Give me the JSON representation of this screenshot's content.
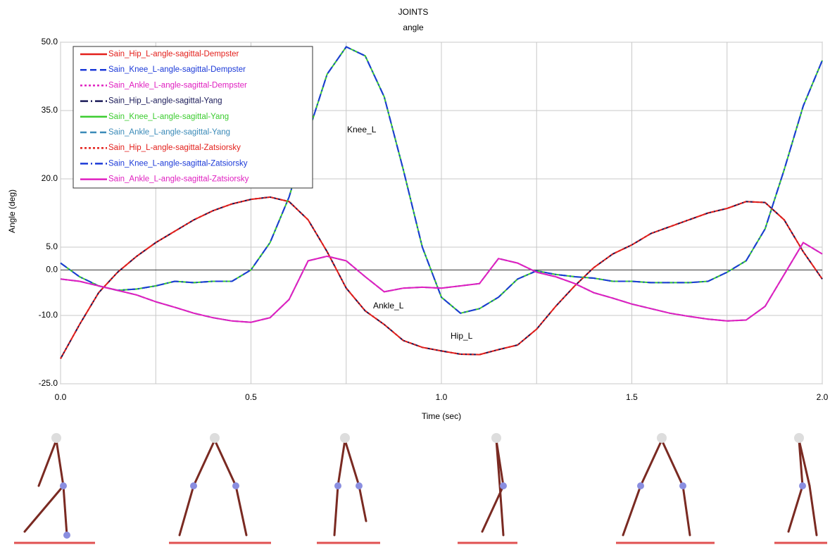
{
  "chart_data": {
    "type": "line",
    "title": "JOINTS",
    "subtitle": "angle",
    "x_label": "Time (sec)",
    "y_label": "Angle (deg)",
    "xlim": [
      0,
      2
    ],
    "ylim": [
      -25,
      50
    ],
    "xticks": [
      {
        "value": 0,
        "label": "0.0"
      },
      {
        "value": 0.5,
        "label": "0.5"
      },
      {
        "value": 1,
        "label": "1.0"
      },
      {
        "value": 1.5,
        "label": "1.5"
      },
      {
        "value": 2,
        "label": "2.0"
      }
    ],
    "xminor": [
      0.25,
      0.75,
      1.25,
      1.75
    ],
    "yticks": [
      {
        "value": 50,
        "label": "50.0"
      },
      {
        "value": 35,
        "label": "35.0"
      },
      {
        "value": 20,
        "label": "20.0"
      },
      {
        "value": 5,
        "label": "5.0"
      },
      {
        "value": 0,
        "label": "0.0"
      },
      {
        "value": -10,
        "label": "-10.0"
      },
      {
        "value": -25,
        "label": "-25.0"
      }
    ],
    "grid": true,
    "legend": "upper left",
    "annotations": [
      "Knee_L",
      "Ankle_L",
      "Hip_L"
    ],
    "x": [
      0,
      0.05,
      0.1,
      0.15,
      0.2,
      0.25,
      0.3,
      0.35,
      0.4,
      0.45,
      0.5,
      0.55,
      0.6,
      0.65,
      0.7,
      0.75,
      0.8,
      0.85,
      0.9,
      0.95,
      1,
      1.05,
      1.1,
      1.15,
      1.2,
      1.25,
      1.3,
      1.35,
      1.4,
      1.45,
      1.5,
      1.55,
      1.6,
      1.65,
      1.7,
      1.75,
      1.8,
      1.85,
      1.9,
      1.95,
      2
    ],
    "series": [
      {
        "name": "Sain_Hip_L-angle-sagittal-Dempster",
        "color": "#e3201c",
        "dash": "solid",
        "values": [
          -19.5,
          -12,
          -5,
          -0.5,
          3,
          6,
          8.5,
          11,
          13,
          14.5,
          15.5,
          16,
          15,
          11,
          4,
          -4,
          -9,
          -12,
          -15.5,
          -17,
          -17.8,
          -18.5,
          -18.6,
          -17.5,
          -16.5,
          -13,
          -8,
          -3.5,
          0.5,
          3.5,
          5.5,
          8,
          9.5,
          11,
          12.5,
          13.5,
          15,
          14.8,
          11,
          4,
          -2
        ]
      },
      {
        "name": "Sain_Knee_L-angle-sagittal-Dempster",
        "color": "#1c3ad8",
        "dash": "dashed",
        "values": [
          1.5,
          -1.5,
          -3.5,
          -4.5,
          -4.2,
          -3.5,
          -2.5,
          -2.8,
          -2.5,
          -2.5,
          0,
          6,
          16,
          30,
          43,
          49,
          47,
          38,
          22,
          5,
          -6,
          -9.5,
          -8.5,
          -6,
          -2,
          -0.2,
          -1,
          -1.5,
          -1.8,
          -2.5,
          -2.5,
          -2.8,
          -2.8,
          -2.8,
          -2.5,
          -0.5,
          2,
          9,
          22,
          36,
          46
        ]
      },
      {
        "name": "Sain_Ankle_L-angle-sagittal-Dempster",
        "color": "#e020c0",
        "dash": "dotted",
        "values": [
          -2,
          -2.5,
          -3.5,
          -4.5,
          -5.5,
          -7,
          -8.2,
          -9.5,
          -10.5,
          -11.2,
          -11.5,
          -10.5,
          -6.5,
          2,
          3,
          2,
          -1.5,
          -4.8,
          -4,
          -3.8,
          -4,
          -3.5,
          -3,
          2.5,
          1.5,
          -0.5,
          -1.5,
          -3,
          -5,
          -6.2,
          -7.5,
          -8.5,
          -9.5,
          -10.2,
          -10.8,
          -11.2,
          -11,
          -8,
          -1,
          6,
          3.5
        ]
      },
      {
        "name": "Sain_Hip_L-angle-sagittal-Yang",
        "color": "#1a1a58",
        "dash": "dashdot",
        "values": [
          -19.5,
          -12,
          -5,
          -0.5,
          3,
          6,
          8.5,
          11,
          13,
          14.5,
          15.5,
          16,
          15,
          11,
          4,
          -4,
          -9,
          -12,
          -15.5,
          -17,
          -17.8,
          -18.5,
          -18.6,
          -17.5,
          -16.5,
          -13,
          -8,
          -3.5,
          0.5,
          3.5,
          5.5,
          8,
          9.5,
          11,
          12.5,
          13.5,
          15,
          14.8,
          11,
          4,
          -2
        ]
      },
      {
        "name": "Sain_Knee_L-angle-sagittal-Yang",
        "color": "#3ccc30",
        "dash": "solid",
        "values": [
          1.5,
          -1.5,
          -3.5,
          -4.5,
          -4.2,
          -3.5,
          -2.5,
          -2.8,
          -2.5,
          -2.5,
          0,
          6,
          16,
          30,
          43,
          49,
          47,
          38,
          22,
          5,
          -6,
          -9.5,
          -8.5,
          -6,
          -2,
          -0.2,
          -1,
          -1.5,
          -1.8,
          -2.5,
          -2.5,
          -2.8,
          -2.8,
          -2.8,
          -2.5,
          -0.5,
          2,
          9,
          22,
          36,
          46
        ]
      },
      {
        "name": "Sain_Ankle_L-angle-sagittal-Yang",
        "color": "#3a8ab8",
        "dash": "dashed",
        "values": [
          -2,
          -2.5,
          -3.5,
          -4.5,
          -5.5,
          -7,
          -8.2,
          -9.5,
          -10.5,
          -11.2,
          -11.5,
          -10.5,
          -6.5,
          2,
          3,
          2,
          -1.5,
          -4.8,
          -4,
          -3.8,
          -4,
          -3.5,
          -3,
          2.5,
          1.5,
          -0.5,
          -1.5,
          -3,
          -5,
          -6.2,
          -7.5,
          -8.5,
          -9.5,
          -10.2,
          -10.8,
          -11.2,
          -11,
          -8,
          -1,
          6,
          3.5
        ]
      },
      {
        "name": "Sain_Hip_L-angle-sagittal-Zatsiorsky",
        "color": "#e3201c",
        "dash": "dotted",
        "values": [
          -19.5,
          -12,
          -5,
          -0.5,
          3,
          6,
          8.5,
          11,
          13,
          14.5,
          15.5,
          16,
          15,
          11,
          4,
          -4,
          -9,
          -12,
          -15.5,
          -17,
          -17.8,
          -18.5,
          -18.6,
          -17.5,
          -16.5,
          -13,
          -8,
          -3.5,
          0.5,
          3.5,
          5.5,
          8,
          9.5,
          11,
          12.5,
          13.5,
          15,
          14.8,
          11,
          4,
          -2
        ]
      },
      {
        "name": "Sain_Knee_L-angle-sagittal-Zatsiorsky",
        "color": "#1c3ad8",
        "dash": "dashdot",
        "values": [
          1.5,
          -1.5,
          -3.5,
          -4.5,
          -4.2,
          -3.5,
          -2.5,
          -2.8,
          -2.5,
          -2.5,
          0,
          6,
          16,
          30,
          43,
          49,
          47,
          38,
          22,
          5,
          -6,
          -9.5,
          -8.5,
          -6,
          -2,
          -0.2,
          -1,
          -1.5,
          -1.8,
          -2.5,
          -2.5,
          -2.8,
          -2.8,
          -2.8,
          -2.5,
          -0.5,
          2,
          9,
          22,
          36,
          46
        ]
      },
      {
        "name": "Sain_Ankle_L-angle-sagittal-Zatsiorsky",
        "color": "#e020c0",
        "dash": "solid",
        "values": [
          -2,
          -2.5,
          -3.5,
          -4.5,
          -5.5,
          -7,
          -8.2,
          -9.5,
          -10.5,
          -11.2,
          -11.5,
          -10.5,
          -6.5,
          2,
          3,
          2,
          -1.5,
          -4.8,
          -4,
          -3.8,
          -4,
          -3.5,
          -3,
          2.5,
          1.5,
          -0.5,
          -1.5,
          -3,
          -5,
          -6.2,
          -7.5,
          -8.5,
          -9.5,
          -10.2,
          -10.8,
          -11.2,
          -11,
          -8,
          -1,
          6,
          3.5
        ]
      }
    ]
  }
}
